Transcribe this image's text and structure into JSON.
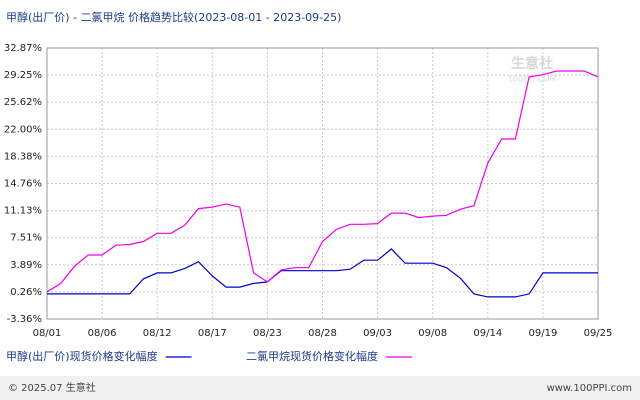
{
  "chart_data": {
    "type": "line",
    "title": "甲醇(出厂价) - 二氯甲烷 价格趋势比较(2023-08-01 - 2023-09-25)",
    "categories": [
      "08/01",
      null,
      null,
      null,
      "08/06",
      null,
      null,
      null,
      "08/12",
      null,
      null,
      null,
      "08/17",
      null,
      null,
      null,
      "08/23",
      null,
      null,
      null,
      "08/28",
      null,
      null,
      null,
      "09/03",
      null,
      null,
      null,
      "09/08",
      null,
      null,
      null,
      "09/14",
      null,
      null,
      null,
      "09/19",
      null,
      null,
      null,
      "09/25"
    ],
    "series": [
      {
        "name": "甲醇(出厂价)现货价格变化幅度",
        "color": "#0000cc",
        "values": [
          0.0,
          0.0,
          0.0,
          0.0,
          0.0,
          0.0,
          0.0,
          2.0,
          2.8,
          2.8,
          3.4,
          4.3,
          2.4,
          0.9,
          0.9,
          1.4,
          1.6,
          3.1,
          3.1,
          3.1,
          3.1,
          3.1,
          3.3,
          4.5,
          4.5,
          6.0,
          4.1,
          4.1,
          4.1,
          3.5,
          2.1,
          0.0,
          -0.4,
          -0.4,
          -0.4,
          0.0,
          2.8,
          2.8,
          2.8,
          2.8,
          2.8
        ]
      },
      {
        "name": "二氯甲烷现货价格变化幅度",
        "color": "#ee00ee",
        "values": [
          0.26,
          1.4,
          3.7,
          5.2,
          5.2,
          6.5,
          6.6,
          7.0,
          8.1,
          8.1,
          9.2,
          11.4,
          11.6,
          12.0,
          11.6,
          2.8,
          1.6,
          3.2,
          3.5,
          3.5,
          7.0,
          8.6,
          9.3,
          9.3,
          9.4,
          10.8,
          10.8,
          10.2,
          10.4,
          10.5,
          11.3,
          11.8,
          17.5,
          20.7,
          20.7,
          29.0,
          29.3,
          29.8,
          29.8,
          29.8,
          29.0
        ]
      }
    ],
    "ylim": [
      -3.36,
      32.87
    ],
    "yticks": [
      {
        "value": 32.87,
        "label": "32.87%"
      },
      {
        "value": 29.25,
        "label": "29.25%"
      },
      {
        "value": 25.62,
        "label": "25.62%"
      },
      {
        "value": 22.0,
        "label": "22.00%"
      },
      {
        "value": 18.38,
        "label": "18.38%"
      },
      {
        "value": 14.76,
        "label": "14.76%"
      },
      {
        "value": 11.13,
        "label": "11.13%"
      },
      {
        "value": 7.51,
        "label": "7.51%"
      },
      {
        "value": 3.89,
        "label": "3.89%"
      },
      {
        "value": 0.26,
        "label": "0.26%"
      },
      {
        "value": -3.36,
        "label": "-3.36%"
      }
    ],
    "grid": true,
    "watermark": [
      "生意社",
      "100PPI.COM"
    ],
    "footer": {
      "left": "© 2025.07 生意社",
      "right": "www.100PPI.com"
    }
  }
}
